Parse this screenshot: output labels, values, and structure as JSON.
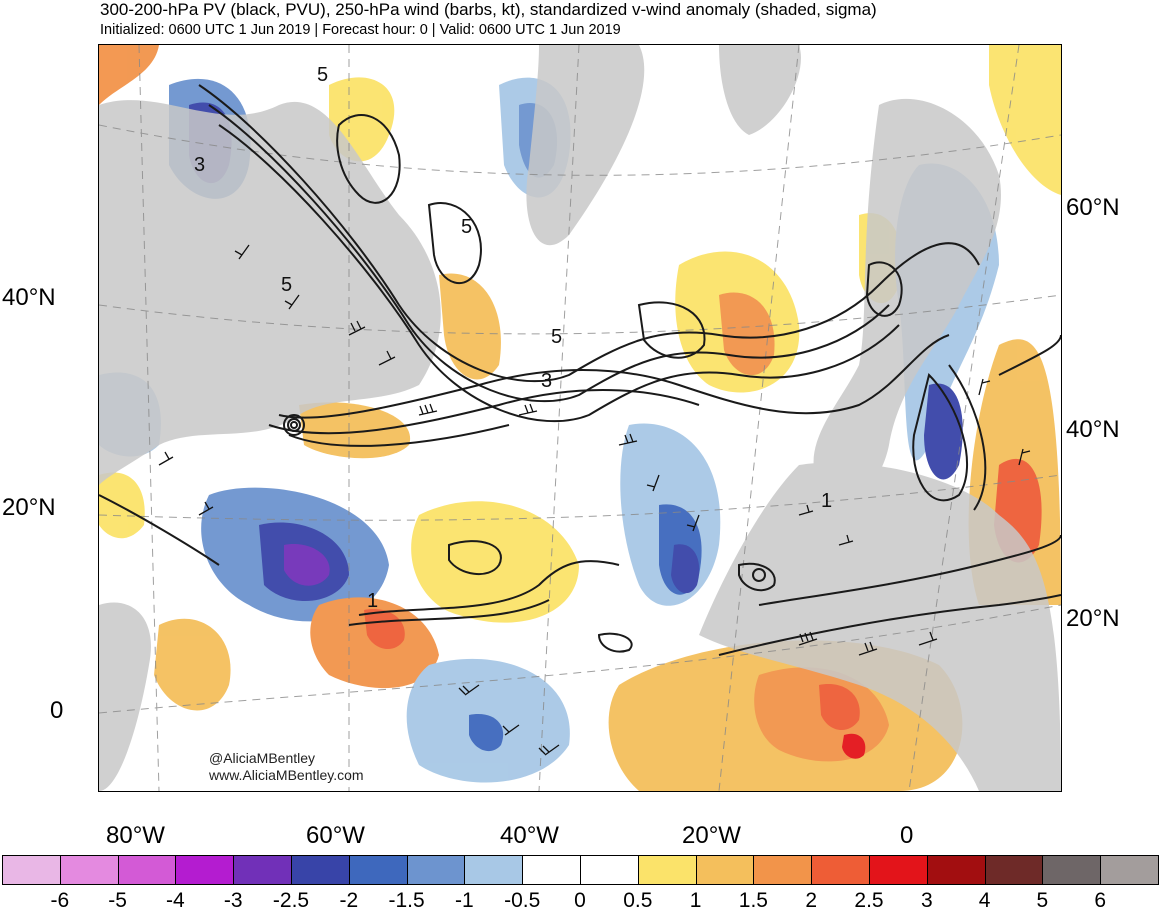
{
  "title": "300-200-hPa PV (black, PVU), 250-hPa wind (barbs, kt), standardized v-wind anomaly (shaded, sigma)",
  "subtitle": "Initialized: 0600 UTC 1 Jun 2019 | Forecast hour: 0 | Valid: 0600 UTC 1 Jun 2019",
  "credit": {
    "handle": "@AliciaMBentley",
    "website": "www.AliciaMBentley.com"
  },
  "map": {
    "left_lat_labels": [
      "40°N",
      "20°N",
      "0"
    ],
    "right_lat_labels": [
      "60°N",
      "40°N",
      "20°N"
    ],
    "lon_labels": [
      "80°W",
      "60°W",
      "40°W",
      "20°W",
      "0"
    ],
    "pv_contour_labels": [
      "5",
      "3",
      "5",
      "5",
      "5",
      "3",
      "1",
      "1"
    ],
    "pv_contour_levels_pvu": [
      1,
      3,
      5,
      7
    ],
    "colors": {
      "land": "#c8c8c8",
      "ocean": "#ffffff",
      "contours": "#1a1a1a",
      "grid": "#888888"
    }
  },
  "colorbar": {
    "labels": [
      "-6",
      "-5",
      "-4",
      "-3",
      "-2.5",
      "-2",
      "-1.5",
      "-1",
      "-0.5",
      "0",
      "0.5",
      "1",
      "1.5",
      "2",
      "2.5",
      "3",
      "4",
      "5",
      "6"
    ],
    "colors": [
      "#e9b7e6",
      "#e48ae0",
      "#d35ad6",
      "#b41cd0",
      "#7130b8",
      "#3844a8",
      "#3e68bd",
      "#6d94cf",
      "#a8c8e6",
      "#ffffff",
      "#ffffff",
      "#fbe36a",
      "#f4bf5c",
      "#f2944a",
      "#ee5d36",
      "#e3141a",
      "#a20e10",
      "#6e2a28",
      "#6e6667",
      "#a39d9c"
    ]
  }
}
